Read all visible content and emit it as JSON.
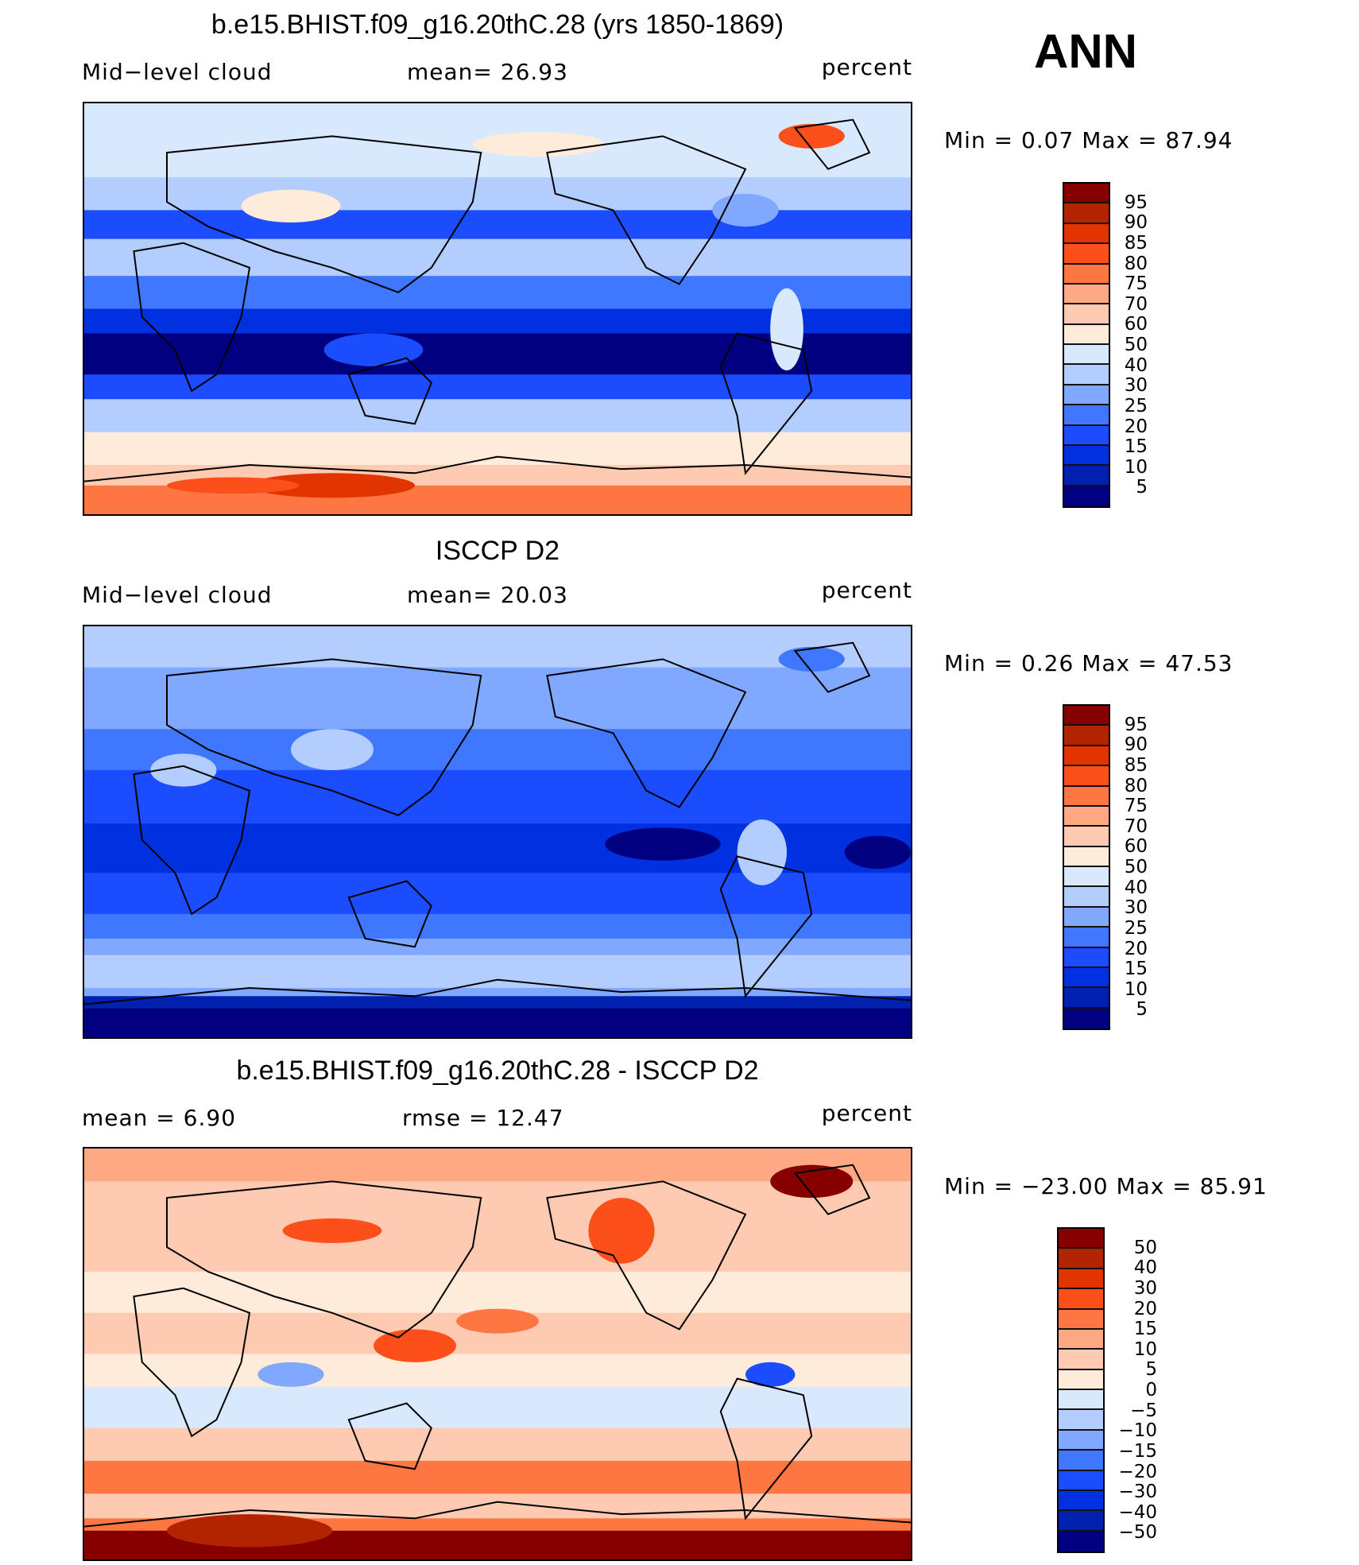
{
  "season": "ANN",
  "palette": [
    "#000080",
    "#0020b0",
    "#0030e0",
    "#1b4cfe",
    "#3f78fe",
    "#80a8fe",
    "#b3cdfe",
    "#d8e9fe",
    "#ffebd9",
    "#fecbb2",
    "#fea984",
    "#fe7743",
    "#fc4f1a",
    "#e23400",
    "#b22400",
    "#870000"
  ],
  "chart_data": [
    {
      "type": "heatmap",
      "title": "b.e15.BHIST.f09_g16.20thC.28 (yrs 1850-1869)",
      "left_label": "Mid−level cloud",
      "center_label": "mean=   26.93",
      "units": "percent",
      "mean": 26.93,
      "min_max_text": "Min =    0.07  Max =   87.94",
      "min": 0.07,
      "max": 87.94,
      "levels": [
        "95",
        "90",
        "85",
        "80",
        "75",
        "70",
        "60",
        "50",
        "40",
        "30",
        "25",
        "20",
        "15",
        "10",
        "5"
      ]
    },
    {
      "type": "heatmap",
      "title": "ISCCP D2",
      "left_label": "Mid−level cloud",
      "center_label": "mean=   20.03",
      "units": "percent",
      "mean": 20.03,
      "min_max_text": "Min =    0.26  Max =   47.53",
      "min": 0.26,
      "max": 47.53,
      "levels": [
        "95",
        "90",
        "85",
        "80",
        "75",
        "70",
        "60",
        "50",
        "40",
        "30",
        "25",
        "20",
        "15",
        "10",
        "5"
      ]
    },
    {
      "type": "heatmap",
      "title": "b.e15.BHIST.f09_g16.20thC.28 - ISCCP D2",
      "left_label": "mean =     6.90",
      "center_label": "rmse  =    12.47",
      "units": "percent",
      "mean": 6.9,
      "rmse": 12.47,
      "min_max_text": "Min = −23.00  Max =   85.91",
      "min": -23.0,
      "max": 85.91,
      "levels": [
        "50",
        "40",
        "30",
        "20",
        "15",
        "10",
        "5",
        "0",
        "−5",
        "−10",
        "−15",
        "−20",
        "−30",
        "−40",
        "−50"
      ]
    }
  ]
}
